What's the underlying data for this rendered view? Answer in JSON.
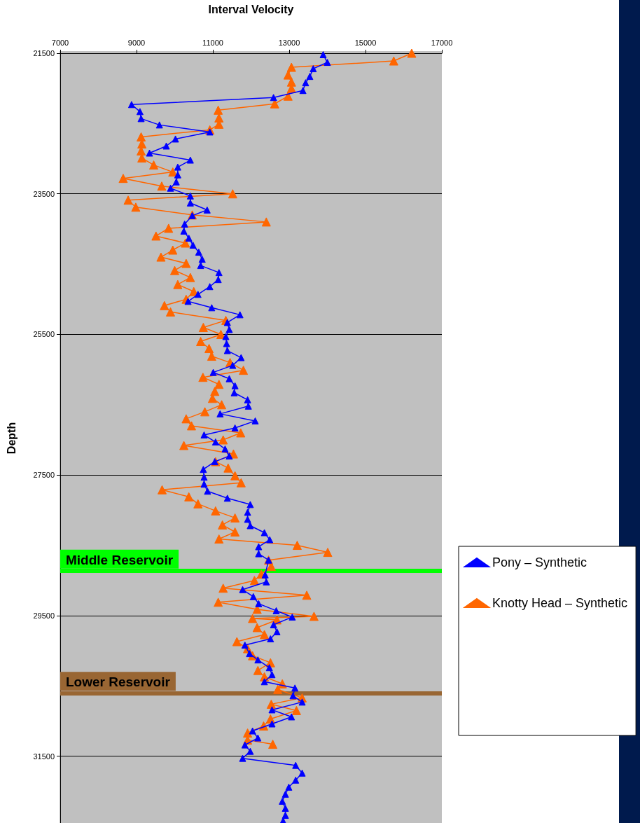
{
  "chart_data": {
    "type": "line",
    "xlabel": "Interval Velocity",
    "ylabel": "Depth",
    "xlim": [
      7000,
      17000
    ],
    "xticks": [
      7000,
      9000,
      11000,
      13000,
      15000,
      17000
    ],
    "ylim": [
      32450,
      21500
    ],
    "yticks": [
      21500,
      23500,
      25500,
      27500,
      29500,
      31500
    ],
    "grid": "y",
    "legend": "right",
    "marker": "triangle",
    "line_style": "solid",
    "ref_lines": [
      {
        "axis": "y",
        "value": 28860,
        "label": "Middle Reservoir",
        "color": "#00ff00"
      },
      {
        "axis": "y",
        "value": 30600,
        "label": "Lower Reservoir",
        "color": "#996633"
      }
    ],
    "series": [
      {
        "name": "Pony – Synthetic",
        "color": "#0000ff",
        "x": [
          13890,
          14000,
          13630,
          13540,
          13430,
          13360,
          12590,
          8870,
          9090,
          9120,
          9600,
          10920,
          10020,
          9780,
          9340,
          10410,
          10080,
          10080,
          10040,
          9890,
          10410,
          10410,
          10850,
          10460,
          10260,
          10240,
          10370,
          10480,
          10630,
          10720,
          10680,
          11160,
          11140,
          10920,
          10610,
          10350,
          10970,
          11710,
          11380,
          11430,
          11340,
          11360,
          11380,
          11740,
          11520,
          11010,
          11430,
          11580,
          11560,
          11910,
          11930,
          11190,
          12110,
          11580,
          10770,
          11070,
          11320,
          11430,
          11050,
          10750,
          10770,
          10770,
          10860,
          11380,
          11980,
          11910,
          11910,
          11980,
          12350,
          12490,
          12200,
          12200,
          12460,
          12370,
          12400,
          11780,
          12060,
          12200,
          12660,
          13080,
          12590,
          12680,
          12510,
          11840,
          11960,
          12180,
          12480,
          12550,
          12350,
          13150,
          13100,
          13340,
          12550,
          13060,
          12550,
          12040,
          12180,
          11840,
          11980,
          11780,
          13170,
          13340,
          13170,
          12990,
          12900,
          12820,
          12900,
          12900,
          12840
        ],
        "values": [
          21520,
          21630,
          21720,
          21830,
          21920,
          22030,
          22130,
          22230,
          22330,
          22430,
          22520,
          22620,
          22720,
          22820,
          22920,
          23020,
          23120,
          23230,
          23330,
          23420,
          23530,
          23630,
          23730,
          23810,
          23930,
          24030,
          24130,
          24230,
          24330,
          24430,
          24520,
          24620,
          24720,
          24820,
          24930,
          25030,
          25120,
          25220,
          25330,
          25430,
          25530,
          25630,
          25730,
          25830,
          25940,
          26040,
          26130,
          26230,
          26330,
          26430,
          26520,
          26630,
          26730,
          26830,
          26930,
          27030,
          27130,
          27230,
          27310,
          27420,
          27530,
          27630,
          27730,
          27830,
          27920,
          28030,
          28130,
          28220,
          28320,
          28420,
          28520,
          28620,
          28710,
          28920,
          29020,
          29130,
          29230,
          29330,
          29430,
          29520,
          29630,
          29730,
          29830,
          29920,
          30040,
          30130,
          30240,
          30340,
          30440,
          30530,
          30640,
          30730,
          30840,
          30940,
          31040,
          31140,
          31240,
          31340,
          31430,
          31530,
          31630,
          31740,
          31840,
          31940,
          32040,
          32140,
          32240,
          32340,
          32420
        ]
      },
      {
        "name": "Knotty Head – Synthetic",
        "color": "#ff6600",
        "x": [
          16210,
          15740,
          13060,
          12970,
          13060,
          13060,
          12970,
          12620,
          11140,
          11160,
          11160,
          10920,
          9120,
          9140,
          9120,
          9140,
          9450,
          9950,
          8650,
          9660,
          11520,
          8780,
          8980,
          10460,
          12400,
          9840,
          9510,
          10280,
          9950,
          9640,
          10300,
          10000,
          10410,
          10080,
          10500,
          10300,
          9730,
          9890,
          11340,
          10750,
          11210,
          10680,
          10900,
          10970,
          11450,
          11800,
          10740,
          11160,
          11050,
          10990,
          11230,
          10790,
          10300,
          10440,
          11730,
          11270,
          10240,
          11540,
          11070,
          11400,
          11580,
          11740,
          9670,
          10370,
          10610,
          11070,
          11580,
          11250,
          11580,
          11160,
          13210,
          14010,
          12460,
          12530,
          12270,
          12090,
          11270,
          13460,
          11140,
          12160,
          13650,
          12040,
          12680,
          12160,
          12350,
          11630,
          11910,
          12040,
          12510,
          12180,
          12350,
          12820,
          12700,
          13340,
          12530,
          13190,
          12510,
          12330,
          11910,
          11910,
          12570
        ],
        "values": [
          21500,
          21610,
          21700,
          21810,
          21910,
          22000,
          22110,
          22220,
          22310,
          22420,
          22510,
          22590,
          22690,
          22790,
          22890,
          22990,
          23090,
          23190,
          23280,
          23390,
          23500,
          23590,
          23690,
          23800,
          23900,
          23990,
          24100,
          24200,
          24300,
          24400,
          24490,
          24590,
          24690,
          24790,
          24890,
          25000,
          25090,
          25180,
          25300,
          25400,
          25500,
          25600,
          25700,
          25810,
          25900,
          26010,
          26110,
          26210,
          26310,
          26410,
          26500,
          26600,
          26700,
          26800,
          26900,
          27000,
          27080,
          27200,
          27310,
          27400,
          27510,
          27610,
          27710,
          27810,
          27910,
          28010,
          28110,
          28210,
          28310,
          28410,
          28500,
          28600,
          28710,
          28800,
          28910,
          29000,
          29110,
          29210,
          29310,
          29410,
          29510,
          29540,
          29560,
          29670,
          29770,
          29870,
          29970,
          30070,
          30170,
          30280,
          30370,
          30470,
          30550,
          30670,
          30760,
          30850,
          30970,
          31070,
          31170,
          31270,
          31330
        ]
      }
    ]
  }
}
